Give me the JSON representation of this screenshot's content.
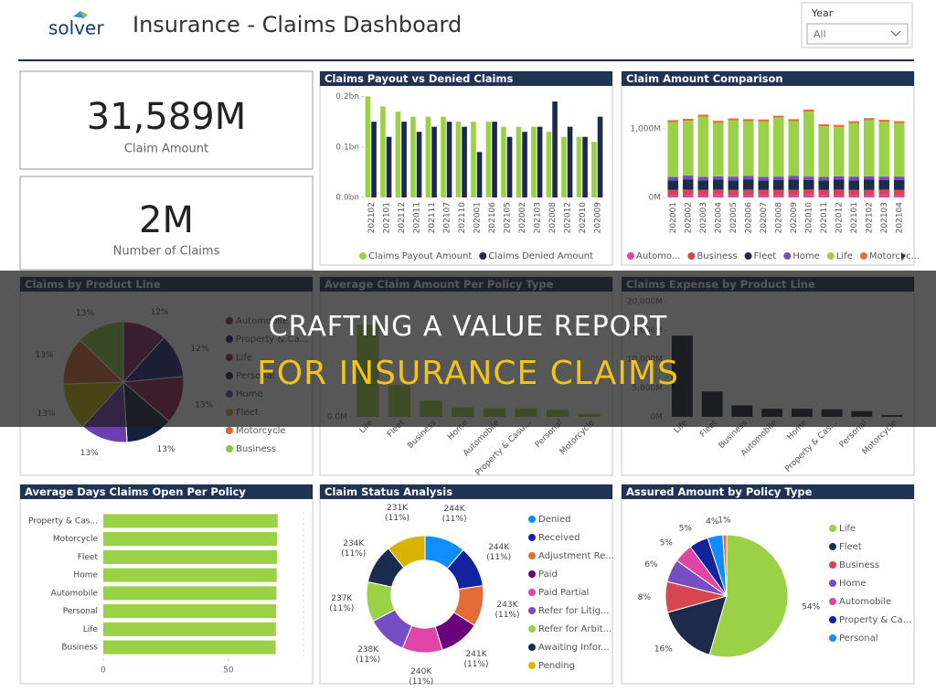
{
  "header": {
    "logo": "solver",
    "title": "Insurance - Claims Dashboard",
    "filter_label": "Year",
    "filter_value": "All"
  },
  "kpis": [
    {
      "value": "31,589M",
      "label": "Claim Amount"
    },
    {
      "value": "2M",
      "label": "Number of Claims"
    }
  ],
  "banner": {
    "line1": "CRAFTING A VALUE REPORT",
    "line2": "FOR INSURANCE CLAIMS"
  },
  "chart_data": [
    {
      "type": "bar",
      "title": "Claims Payout vs Denied Claims",
      "categories": [
        "202102",
        "202101",
        "202112",
        "202011",
        "202111",
        "202107",
        "202110",
        "202001",
        "202106",
        "202105",
        "202002",
        "202103",
        "202008",
        "202012",
        "202010",
        "202009"
      ],
      "series": [
        {
          "name": "Claims Payout Amount",
          "color": "#9bd146",
          "values": [
            0.2,
            0.18,
            0.17,
            0.16,
            0.16,
            0.16,
            0.15,
            0.15,
            0.15,
            0.14,
            0.14,
            0.14,
            0.13,
            0.12,
            0.12,
            0.11
          ]
        },
        {
          "name": "Claims Denied Amount",
          "color": "#1c2b4a",
          "values": [
            0.15,
            0.12,
            0.15,
            0.13,
            0.14,
            0.15,
            0.14,
            0.09,
            0.15,
            0.12,
            0.13,
            0.14,
            0.19,
            0.14,
            0.12,
            0.16
          ]
        }
      ],
      "ylim": [
        0,
        0.21
      ],
      "yticks": [
        {
          "value": 0,
          "label": "0.0bn"
        },
        {
          "value": 0.1,
          "label": "0.1bn"
        },
        {
          "value": 0.2,
          "label": "0.2bn"
        }
      ]
    },
    {
      "type": "bar",
      "stacked": true,
      "title": "Claim Amount Comparison",
      "categories": [
        "202001",
        "202002",
        "202003",
        "202004",
        "202005",
        "202006",
        "202007",
        "202008",
        "202009",
        "202010",
        "202011",
        "202012",
        "202101",
        "202102",
        "202103",
        "202104"
      ],
      "series": [
        {
          "name": "Automo...",
          "color": "#e044a7",
          "values": [
            40,
            40,
            40,
            45,
            40,
            40,
            40,
            40,
            40,
            45,
            40,
            40,
            40,
            40,
            45,
            40
          ]
        },
        {
          "name": "Business",
          "color": "#d64550",
          "values": [
            70,
            75,
            70,
            70,
            70,
            75,
            70,
            70,
            70,
            70,
            70,
            75,
            70,
            70,
            70,
            70
          ]
        },
        {
          "name": "Fleet",
          "color": "#1c2b4a",
          "values": [
            140,
            150,
            140,
            145,
            140,
            150,
            140,
            145,
            150,
            140,
            140,
            145,
            140,
            150,
            140,
            145
          ]
        },
        {
          "name": "Home",
          "color": "#744ec2",
          "values": [
            50,
            55,
            50,
            50,
            55,
            50,
            50,
            50,
            55,
            50,
            50,
            50,
            55,
            50,
            50,
            50
          ]
        },
        {
          "name": "Life",
          "color": "#9bd146",
          "values": [
            800,
            800,
            880,
            780,
            820,
            800,
            810,
            860,
            800,
            950,
            740,
            720,
            780,
            820,
            800,
            780
          ]
        },
        {
          "name": "Motorcyc...",
          "color": "#e66c37",
          "values": [
            30,
            30,
            30,
            30,
            30,
            30,
            30,
            30,
            30,
            30,
            30,
            30,
            30,
            30,
            30,
            30
          ]
        }
      ],
      "ylim": [
        0,
        1550
      ],
      "yticks": [
        {
          "value": 0,
          "label": "0M"
        },
        {
          "value": 1000,
          "label": "1,000M"
        }
      ]
    },
    {
      "type": "pie",
      "title": "Claims by Product Line",
      "categories": [
        "Automobile",
        "Property & Ca...",
        "Life",
        "Personal",
        "Home",
        "Fleet",
        "Motorcycle",
        "Business"
      ],
      "values": [
        12,
        12,
        13,
        13,
        13,
        13,
        13,
        13
      ],
      "value_labels": [
        "12%",
        "12%",
        "13%",
        "13%",
        "13%",
        "13%",
        "13%",
        "13%"
      ],
      "colors": [
        "#8d2268",
        "#1b237a",
        "#a01f55",
        "#14213d",
        "#6c3fb0",
        "#c8b400",
        "#d9662e",
        "#8cc63f"
      ]
    },
    {
      "type": "bar",
      "title": "Average Claim Amount Per Policy Type",
      "categories": [
        "Life",
        "Fleet",
        "Business",
        "Home",
        "Automobile",
        "Property & Casu...",
        "Personal",
        "Motorcycle"
      ],
      "values": [
        1.6,
        0.55,
        0.28,
        0.16,
        0.15,
        0.15,
        0.12,
        0.05
      ],
      "color": "#9bd146",
      "ylim": [
        0,
        2
      ],
      "yticks": [
        {
          "value": 0,
          "label": "0.0M"
        }
      ]
    },
    {
      "type": "bar",
      "title": "Claims Expense by Product Line",
      "categories": [
        "Life",
        "Fleet",
        "Business",
        "Automobile",
        "Home",
        "Property & Cas...",
        "Personal",
        "Motorcycle"
      ],
      "values": [
        14100,
        4400,
        2000,
        1400,
        1400,
        1300,
        1000,
        300
      ],
      "color": "#1c2238",
      "ylim": [
        0,
        20000
      ],
      "yticks": [
        {
          "value": 0,
          "label": "0M"
        },
        {
          "value": 5000,
          "label": "5,000M"
        },
        {
          "value": 10000,
          "label": "10,000M"
        },
        {
          "value": 15000,
          "label": "15,000M"
        },
        {
          "value": 20000,
          "label": "20,000M"
        }
      ]
    },
    {
      "type": "bar",
      "orientation": "horizontal",
      "title": "Average Days Claims Open Per Policy",
      "categories": [
        "Property & Cas...",
        "Motorcycle",
        "Fleet",
        "Home",
        "Automobile",
        "Personal",
        "Life",
        "Business"
      ],
      "values": [
        69.7,
        69.4,
        69.4,
        69.3,
        69.2,
        69.1,
        69,
        68.9
      ],
      "color": "#9bd146",
      "xlim": [
        0,
        80
      ],
      "xticks": [
        0,
        50
      ]
    },
    {
      "type": "donut",
      "title": "Claim Status Analysis",
      "categories": [
        "Denied",
        "Received",
        "Adjustment Re...",
        "Paid",
        "Paid Partial",
        "Refer for Litig...",
        "Refer for Arbit...",
        "Awaiting Infor...",
        "Pending"
      ],
      "values": [
        244,
        244,
        243,
        241,
        240,
        238,
        237,
        234,
        231
      ],
      "value_labels": [
        "244K (11%)",
        "244K (11%)",
        "243K (11%)",
        "241K (11%)",
        "240K (11%)",
        "238K (11%)",
        "237K (11%)",
        "234K (11%)",
        "231K (11%)"
      ],
      "colors": [
        "#118dff",
        "#12239e",
        "#e66c37",
        "#6b007b",
        "#e044a7",
        "#744ec2",
        "#9bd146",
        "#1a2d4f",
        "#d9b300"
      ]
    },
    {
      "type": "pie",
      "title": "Assured Amount by Policy Type",
      "categories": [
        "Life",
        "Fleet",
        "Business",
        "Home",
        "Automobile",
        "Property & Ca...",
        "Personal",
        null
      ],
      "values": [
        54,
        16,
        8,
        6,
        5,
        5,
        4,
        1
      ],
      "value_labels": [
        "54%",
        "16%",
        "8%",
        "6%",
        "5%",
        "5%",
        "4%",
        "1%"
      ],
      "colors": [
        "#9bd146",
        "#1c2b4a",
        "#d64550",
        "#744ec2",
        "#e044a7",
        "#12239e",
        "#118dff",
        "#e66c37"
      ]
    }
  ]
}
